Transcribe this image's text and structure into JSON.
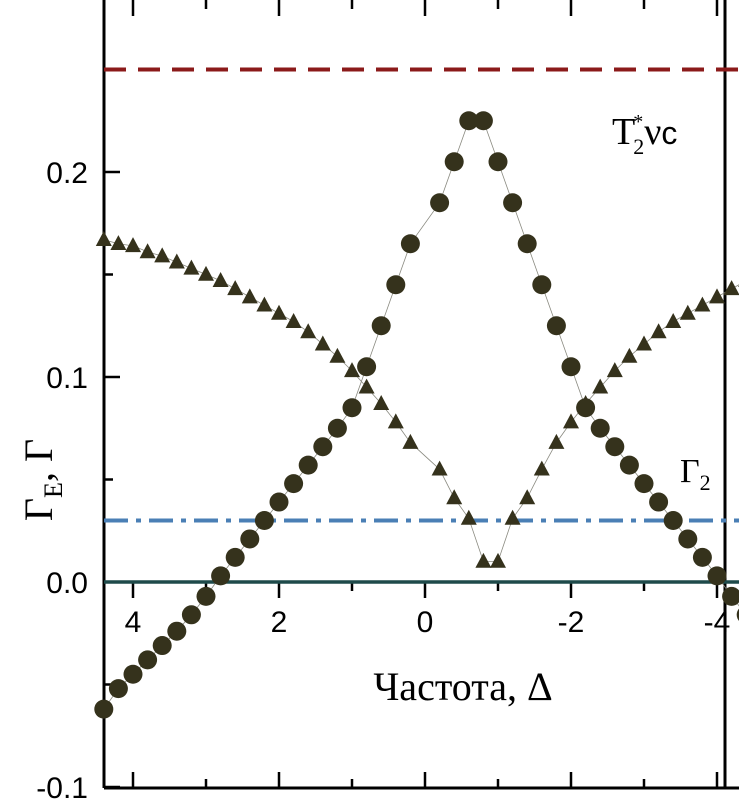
{
  "chart_data": {
    "type": "scatter",
    "title": "",
    "xlabel": "Частота, Δ",
    "ylabel_main": "Γ",
    "ylabel_sub": "E",
    "ylabel_rest": ", Γ",
    "x_reversed": true,
    "xlim": [
      4.2,
      -4.2
    ],
    "ylim": [
      -0.1,
      0.25
    ],
    "x_ticks": [
      4,
      2,
      0,
      -2,
      -4
    ],
    "x_tick_labels": [
      "4",
      "2",
      "0",
      "-2",
      "-4"
    ],
    "y_ticks": [
      -0.1,
      0.0,
      0.1,
      0.2
    ],
    "y_tick_labels": [
      "-0.1",
      "0.0",
      "0.1",
      "0.2"
    ],
    "grid": false,
    "colors": {
      "markers": "#35321c",
      "connector": "#8a8a80",
      "t2_line": "#8b1a1a",
      "gamma2_line": "#4a7fb5",
      "zero_line": "#1e4a4a",
      "axes": "#000000"
    },
    "annotations": {
      "t2_label": "T",
      "t2_sub": "2",
      "t2_sup": "*",
      "t2_rest": "ν",
      "t2_c": "c",
      "gamma2_label": "Γ",
      "gamma2_sub": "2"
    },
    "series": [
      {
        "marker": "circle",
        "x": [
          4.4,
          4.2,
          4.0,
          3.8,
          3.6,
          3.4,
          3.2,
          3.0,
          2.8,
          2.6,
          2.4,
          2.2,
          2.0,
          1.8,
          1.6,
          1.4,
          1.2,
          1.0,
          0.8,
          0.6,
          0.4,
          0.2,
          -0.2,
          -0.4,
          -0.6,
          -0.8,
          -1.0,
          -1.2,
          -1.4,
          -1.6,
          -1.8,
          -2.0,
          -2.2,
          -2.4,
          -2.6,
          -2.8,
          -3.0,
          -3.2,
          -3.4,
          -3.6,
          -3.8,
          -4.0,
          -4.2,
          -4.4
        ],
        "y": [
          -0.062,
          -0.052,
          -0.045,
          -0.038,
          -0.031,
          -0.024,
          -0.016,
          -0.007,
          0.003,
          0.012,
          0.021,
          0.03,
          0.039,
          0.048,
          0.057,
          0.066,
          0.075,
          0.085,
          0.105,
          0.125,
          0.145,
          0.165,
          0.185,
          0.205,
          0.225,
          0.225,
          0.205,
          0.185,
          0.165,
          0.145,
          0.125,
          0.105,
          0.085,
          0.075,
          0.066,
          0.057,
          0.048,
          0.039,
          0.03,
          0.021,
          0.012,
          0.003,
          -0.007,
          -0.016
        ]
      },
      {
        "marker": "triangle",
        "x": [
          4.4,
          4.2,
          4.0,
          3.8,
          3.6,
          3.4,
          3.2,
          3.0,
          2.8,
          2.6,
          2.4,
          2.2,
          2.0,
          1.8,
          1.6,
          1.4,
          1.2,
          1.0,
          0.8,
          0.6,
          0.4,
          0.2,
          -0.2,
          -0.4,
          -0.6,
          -0.8,
          -1.0,
          -1.2,
          -1.4,
          -1.6,
          -1.8,
          -2.0,
          -2.2,
          -2.4,
          -2.6,
          -2.8,
          -3.0,
          -3.2,
          -3.4,
          -3.6,
          -3.8,
          -4.0,
          -4.2,
          -4.4
        ],
        "y": [
          0.167,
          0.165,
          0.164,
          0.161,
          0.159,
          0.156,
          0.153,
          0.15,
          0.147,
          0.143,
          0.139,
          0.135,
          0.131,
          0.127,
          0.122,
          0.116,
          0.11,
          0.103,
          0.095,
          0.087,
          0.078,
          0.068,
          0.055,
          0.041,
          0.031,
          0.01,
          0.01,
          0.031,
          0.041,
          0.055,
          0.068,
          0.078,
          0.087,
          0.095,
          0.103,
          0.11,
          0.116,
          0.122,
          0.127,
          0.131,
          0.135,
          0.139,
          0.143,
          0.147
        ]
      }
    ],
    "reference_lines": [
      {
        "name": "T2*nu_c",
        "y": 0.25,
        "style": "dashed"
      },
      {
        "name": "Gamma2",
        "y": 0.03,
        "style": "dashdot"
      },
      {
        "name": "zero",
        "y": 0.0,
        "style": "solid"
      }
    ]
  }
}
